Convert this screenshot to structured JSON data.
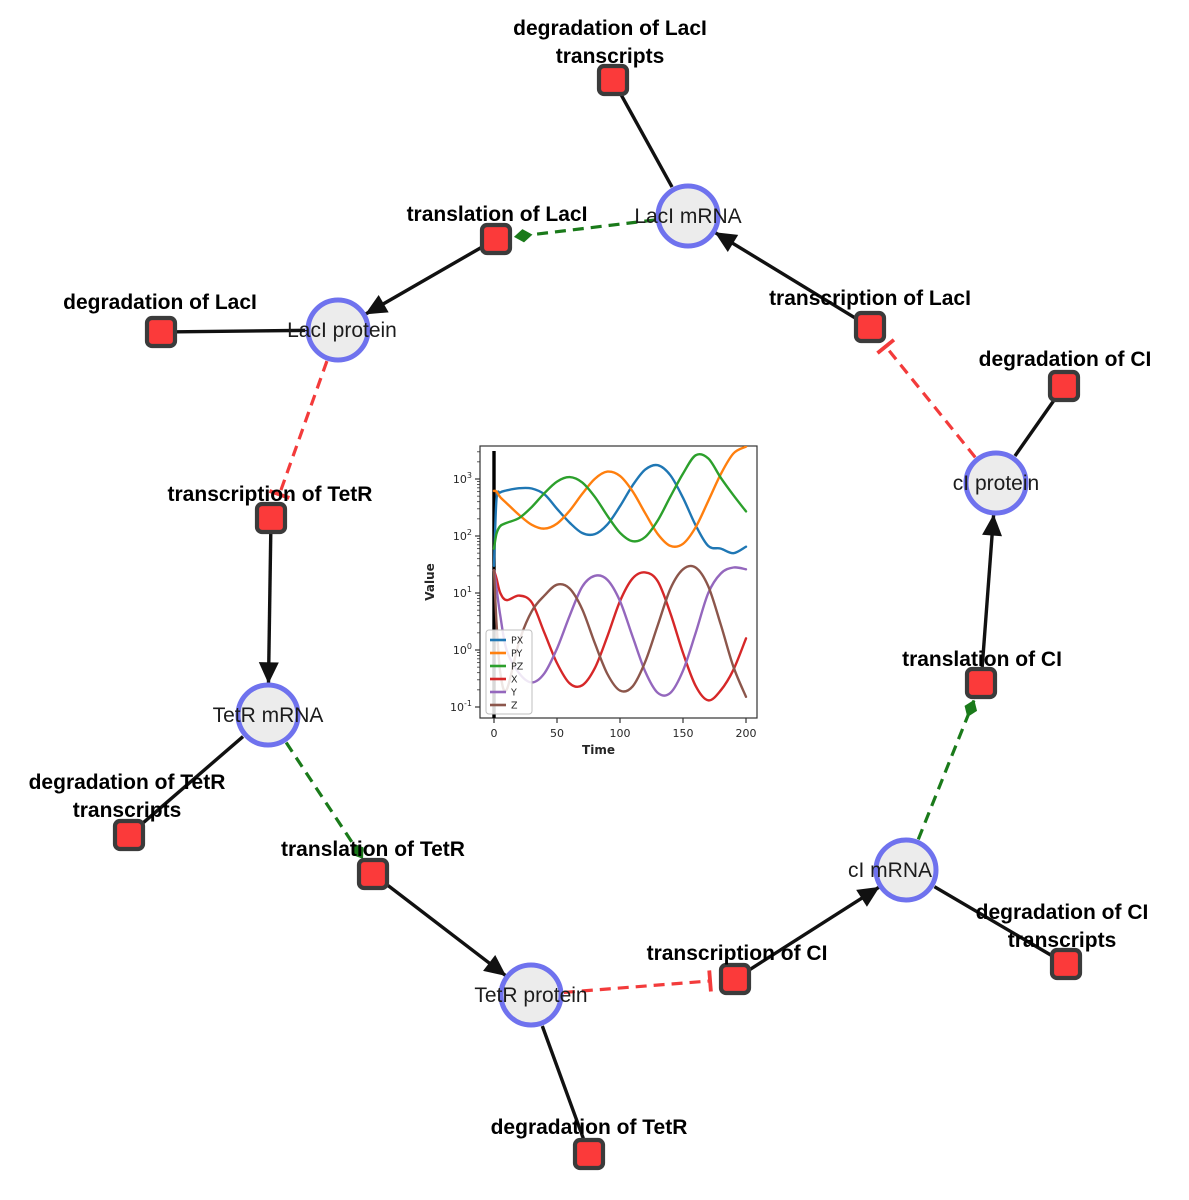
{
  "diagram": {
    "species": [
      {
        "id": "laci-mrna",
        "label": "LacI mRNA"
      },
      {
        "id": "laci-protein",
        "label": "LacI protein"
      },
      {
        "id": "tetr-mrna",
        "label": "TetR mRNA"
      },
      {
        "id": "tetr-protein",
        "label": "TetR protein"
      },
      {
        "id": "ci-mrna",
        "label": "cI mRNA"
      },
      {
        "id": "ci-protein",
        "label": "cI protein"
      }
    ],
    "reactions": [
      {
        "id": "deg-laci-tx",
        "label_lines": [
          "degradation of LacI",
          "transcripts"
        ]
      },
      {
        "id": "transcription-laci",
        "label_lines": [
          "transcription of LacI"
        ]
      },
      {
        "id": "translation-laci",
        "label_lines": [
          "translation of LacI"
        ]
      },
      {
        "id": "deg-laci",
        "label_lines": [
          "degradation of LacI"
        ]
      },
      {
        "id": "transcription-tetr",
        "label_lines": [
          "transcription of TetR"
        ]
      },
      {
        "id": "deg-tetr-tx",
        "label_lines": [
          "degradation of TetR",
          "transcripts"
        ]
      },
      {
        "id": "translation-tetr",
        "label_lines": [
          "translation of TetR"
        ]
      },
      {
        "id": "deg-tetr",
        "label_lines": [
          "degradation of TetR"
        ]
      },
      {
        "id": "transcription-ci",
        "label_lines": [
          "transcription of CI"
        ]
      },
      {
        "id": "deg-ci-tx",
        "label_lines": [
          "degradation of CI",
          "transcripts"
        ]
      },
      {
        "id": "translation-ci",
        "label_lines": [
          "translation of CI"
        ]
      },
      {
        "id": "deg-ci",
        "label_lines": [
          "degradation of CI"
        ]
      }
    ],
    "edges": [
      {
        "from": "laci-mrna",
        "to": "deg-laci-tx",
        "type": "reactant"
      },
      {
        "from": "transcription-laci",
        "to": "laci-mrna",
        "type": "product"
      },
      {
        "from": "laci-mrna",
        "to": "translation-laci",
        "type": "modifier"
      },
      {
        "from": "translation-laci",
        "to": "laci-protein",
        "type": "product"
      },
      {
        "from": "laci-protein",
        "to": "deg-laci",
        "type": "reactant"
      },
      {
        "from": "laci-protein",
        "to": "transcription-tetr",
        "type": "inhibition"
      },
      {
        "from": "transcription-tetr",
        "to": "tetr-mrna",
        "type": "product"
      },
      {
        "from": "tetr-mrna",
        "to": "deg-tetr-tx",
        "type": "reactant"
      },
      {
        "from": "tetr-mrna",
        "to": "translation-tetr",
        "type": "modifier"
      },
      {
        "from": "translation-tetr",
        "to": "tetr-protein",
        "type": "product"
      },
      {
        "from": "tetr-protein",
        "to": "deg-tetr",
        "type": "reactant"
      },
      {
        "from": "tetr-protein",
        "to": "transcription-ci",
        "type": "inhibition"
      },
      {
        "from": "transcription-ci",
        "to": "ci-mrna",
        "type": "product"
      },
      {
        "from": "ci-mrna",
        "to": "deg-ci-tx",
        "type": "reactant"
      },
      {
        "from": "ci-mrna",
        "to": "translation-ci",
        "type": "modifier"
      },
      {
        "from": "translation-ci",
        "to": "ci-protein",
        "type": "product"
      },
      {
        "from": "ci-protein",
        "to": "deg-ci",
        "type": "reactant"
      },
      {
        "from": "ci-protein",
        "to": "transcription-laci",
        "type": "inhibition"
      }
    ],
    "colors": {
      "species_fill": "#ececec",
      "species_border": "#6f72ee",
      "reaction_fill": "#fb3a3a",
      "reaction_border": "#3b3b3b",
      "edge": "#111111",
      "modifier": "#1a7a1a",
      "inhibition": "#f33b3b"
    }
  },
  "chart_data": {
    "type": "line",
    "title": "",
    "xlabel": "Time",
    "ylabel": "Value",
    "y_scale": "log",
    "x_ticks": [
      0,
      50,
      100,
      150,
      200
    ],
    "y_tick_base": "10",
    "y_tick_exponents": [
      3,
      2,
      1,
      0,
      -1
    ],
    "xlim": [
      -11,
      208
    ],
    "ylim_log": [
      -1.19,
      3.58
    ],
    "grid": false,
    "legend_position": "lower left",
    "vline_x": 0,
    "x": [
      0,
      2,
      5,
      10,
      20,
      30,
      40,
      50,
      60,
      70,
      80,
      90,
      100,
      110,
      120,
      130,
      140,
      150,
      160,
      170,
      180,
      190,
      200
    ],
    "series": [
      {
        "name": "PX",
        "color": "#1f77b4",
        "values": [
          30,
          450,
          580,
          630,
          690,
          680,
          540,
          300,
          172,
          113,
          108,
          160,
          333,
          771,
          1459,
          1746,
          1159,
          468,
          155,
          67,
          60,
          50,
          65
        ]
      },
      {
        "name": "PY",
        "color": "#ff7f0e",
        "values": [
          620,
          600,
          480,
          376,
          234,
          157,
          135,
          165,
          277,
          548,
          1006,
          1346,
          1132,
          608,
          251,
          108,
          67,
          73,
          142,
          409,
          1217,
          2800,
          3700
        ]
      },
      {
        "name": "PZ",
        "color": "#2ca02c",
        "values": [
          60,
          110,
          150,
          170,
          207,
          323,
          564,
          900,
          1078,
          870,
          488,
          226,
          114,
          81,
          96,
          188,
          492,
          1244,
          2600,
          2300,
          1050,
          520,
          270
        ]
      },
      {
        "name": "X",
        "color": "#d62728",
        "values": [
          25,
          18,
          10,
          7.5,
          9,
          6.8,
          2.0,
          0.59,
          0.26,
          0.24,
          0.48,
          1.74,
          7.2,
          18,
          23,
          16,
          4.4,
          0.89,
          0.235,
          0.131,
          0.196,
          0.45,
          1.6
        ]
      },
      {
        "name": "Y",
        "color": "#9467bd",
        "values": [
          25,
          12,
          4,
          1.0,
          0.39,
          0.27,
          0.39,
          1.06,
          3.96,
          12.9,
          20,
          17,
          7.2,
          1.72,
          0.42,
          0.177,
          0.177,
          0.434,
          1.98,
          9.9,
          22,
          28,
          26
        ]
      },
      {
        "name": "Z",
        "color": "#8c564b",
        "values": [
          25,
          3,
          0.4,
          0.2,
          1.41,
          4.8,
          9,
          14,
          12,
          5.2,
          1.32,
          0.38,
          0.194,
          0.23,
          0.62,
          2.73,
          11.9,
          26,
          28,
          13.2,
          2.78,
          0.51,
          0.151
        ]
      }
    ]
  }
}
